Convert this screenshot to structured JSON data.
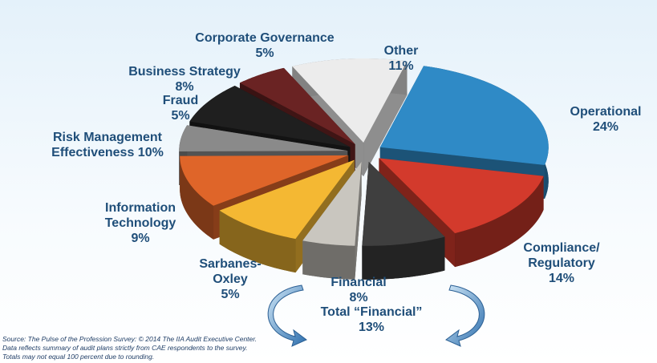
{
  "chart_data": {
    "type": "pie",
    "categories": [
      "Other",
      "Operational",
      "Compliance/ Regulatory",
      "Financial",
      "Sarbanes-Oxley",
      "Information Technology",
      "Risk Management Effectiveness",
      "Fraud",
      "Business Strategy",
      "Corporate Governance"
    ],
    "values": [
      11,
      24,
      14,
      8,
      5,
      9,
      10,
      5,
      8,
      5
    ],
    "value_labels": [
      "11%",
      "24%",
      "14%",
      "8%",
      "5%",
      "9%",
      "10%",
      "5%",
      "8%",
      "5%"
    ],
    "colors": [
      "#ececec",
      "#2f8ac6",
      "#d33a2c",
      "#3f3f3f",
      "#c9c6bf",
      "#f4b833",
      "#df6529",
      "#8a8a8a",
      "#1f1f1f",
      "#6a2323"
    ],
    "annotation": {
      "label": "Total “Financial”",
      "value_label": "13%"
    },
    "source": [
      "Source: The Pulse of the Profession Survey: © 2014 The IIA Audit Executive Center.",
      "Data reflects summary of audit plans strictly from CAE respondents to the survey.",
      "Totals may not equal 100 percent due to rounding."
    ]
  }
}
